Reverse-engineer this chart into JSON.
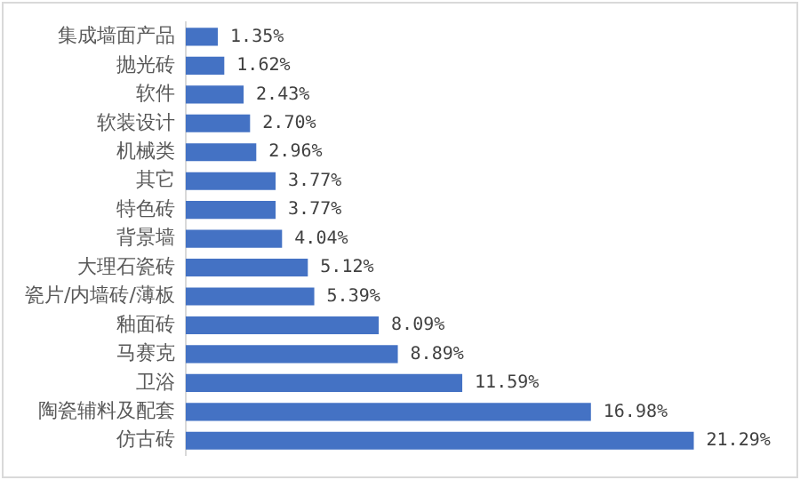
{
  "chart_data": {
    "type": "bar",
    "orientation": "horizontal",
    "color": "#4472c4",
    "categories": [
      "集成墙面产品",
      "抛光砖",
      "软件",
      "软装设计",
      "机械类",
      "其它",
      "特色砖",
      "背景墙",
      "大理石瓷砖",
      "瓷片/内墙砖/薄板",
      "釉面砖",
      "马赛克",
      "卫浴",
      "陶瓷辅料及配套",
      "仿古砖"
    ],
    "values": [
      1.35,
      1.62,
      2.43,
      2.7,
      2.96,
      3.77,
      3.77,
      4.04,
      5.12,
      5.39,
      8.09,
      8.89,
      11.59,
      16.98,
      21.29
    ],
    "value_labels": [
      "1.35%",
      "1.62%",
      "2.43%",
      "2.70%",
      "2.96%",
      "3.77%",
      "3.77%",
      "4.04%",
      "5.12%",
      "5.39%",
      "8.09%",
      "8.89%",
      "11.59%",
      "16.98%",
      "21.29%"
    ],
    "legend": false
  }
}
